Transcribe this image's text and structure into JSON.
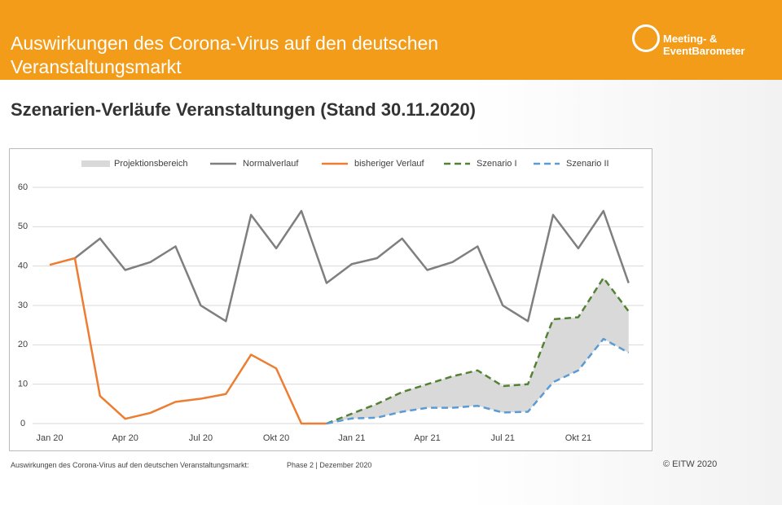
{
  "header": {
    "title_lines": [
      "Auswirkungen des Corona-Virus auf den deutschen",
      "Veranstaltungsmarkt"
    ],
    "logo": "Meeting- & EventBarometer"
  },
  "subtitle": "Szenarien-Verläufe Veranstaltungen (Stand 30.11.2020)",
  "footer": {
    "left": "Auswirkungen des Corona-Virus auf den deutschen Veranstaltungsmarkt:",
    "phase": "Phase 2 | Dezember 2020",
    "copyright": "© EITW 2020"
  },
  "chart_data": {
    "type": "line",
    "categories": [
      "Jan 20",
      null,
      null,
      "Apr 20",
      null,
      null,
      "Jul 20",
      null,
      null,
      "Okt 20",
      null,
      null,
      "Jan 21",
      null,
      null,
      "Apr 21",
      null,
      null,
      "Jul 21",
      null,
      null,
      "Okt 21",
      null,
      null
    ],
    "ylim": [
      0,
      60
    ],
    "yticks": [
      0,
      10,
      20,
      30,
      40,
      50,
      60
    ],
    "grid": true,
    "series": [
      {
        "name": "Projektionsbereich",
        "color": "#d9d9d9",
        "between": [
          3,
          4
        ]
      },
      {
        "name": "Normalverlauf",
        "color": "#7f7f7f",
        "values": [
          null,
          42,
          47,
          39,
          41,
          45,
          30,
          26,
          53,
          44.5,
          54,
          35.7,
          40.5,
          42,
          47,
          39,
          41,
          45,
          30,
          26,
          53,
          44.5,
          54,
          35.7
        ]
      },
      {
        "name": "bisheriger Verlauf",
        "color": "#ed7d31",
        "values": [
          40.3,
          42,
          7,
          1.2,
          2.7,
          5.5,
          6.3,
          7.5,
          17.5,
          14,
          0,
          0,
          null,
          null,
          null,
          null,
          null,
          null,
          null,
          null,
          null,
          null,
          null,
          null
        ]
      },
      {
        "name": "Szenario I",
        "color": "#548235",
        "dashed": true,
        "values": [
          null,
          null,
          null,
          null,
          null,
          null,
          null,
          null,
          null,
          null,
          null,
          0,
          2.5,
          5,
          8,
          10,
          12,
          13.5,
          9.5,
          10,
          26.5,
          27,
          37,
          28.5
        ]
      },
      {
        "name": "Szenario II",
        "color": "#5b9bd5",
        "dashed": true,
        "values": [
          null,
          null,
          null,
          null,
          null,
          null,
          null,
          null,
          null,
          null,
          null,
          0,
          1.3,
          1.5,
          3,
          4,
          4,
          4.5,
          2.8,
          3,
          10.5,
          13.5,
          21.5,
          18
        ]
      }
    ]
  }
}
